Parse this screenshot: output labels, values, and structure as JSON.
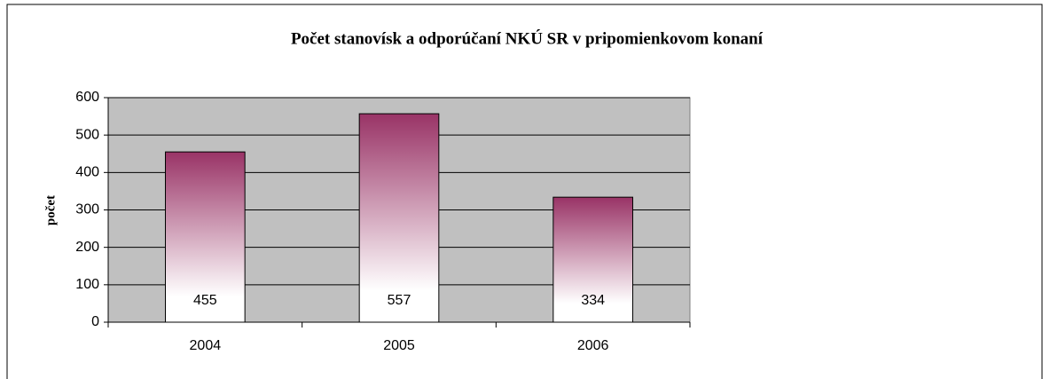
{
  "chart_data": {
    "type": "bar",
    "title": "Počet stanovísk a odporúčaní NKÚ SR v pripomienkovom konaní",
    "y_label": "počet",
    "categories": [
      "2004",
      "2005",
      "2006"
    ],
    "values": [
      455,
      557,
      334
    ],
    "color": "#993366",
    "ylim": [
      0,
      600
    ],
    "yticks": [
      0,
      100,
      200,
      300,
      400,
      500,
      600
    ],
    "grid": true
  }
}
